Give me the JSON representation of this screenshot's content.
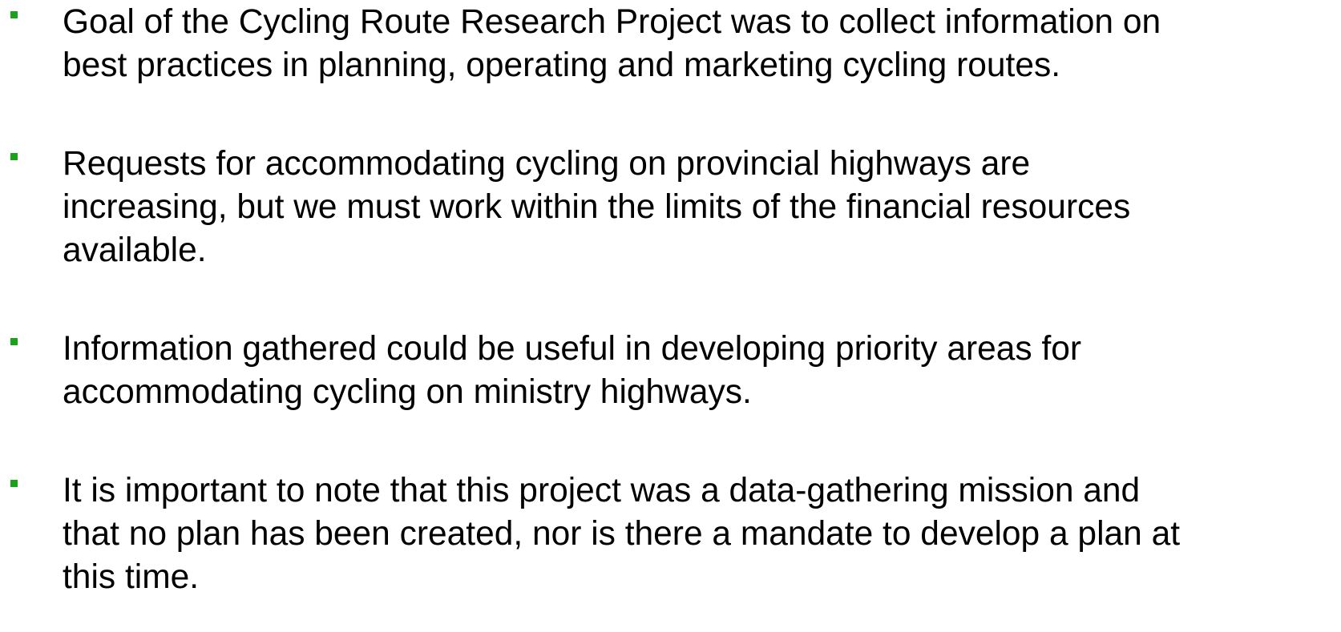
{
  "items": [
    {
      "lines": [
        "Goal of the Cycling Route Research Project was to collect information on",
        "best practices in planning, operating and marketing cycling routes."
      ]
    },
    {
      "lines": [
        "Requests for accommodating cycling on provincial highways are",
        "increasing, but we must work within the limits of the financial resources",
        "available."
      ]
    },
    {
      "lines": [
        "Information gathered could be useful in developing priority areas for",
        "accommodating cycling on ministry highways."
      ]
    },
    {
      "lines": [
        "It is important to note that this project was a data-gathering mission and",
        "that no plan has been created, nor is there a mandate to develop a plan at",
        "this time."
      ]
    }
  ]
}
